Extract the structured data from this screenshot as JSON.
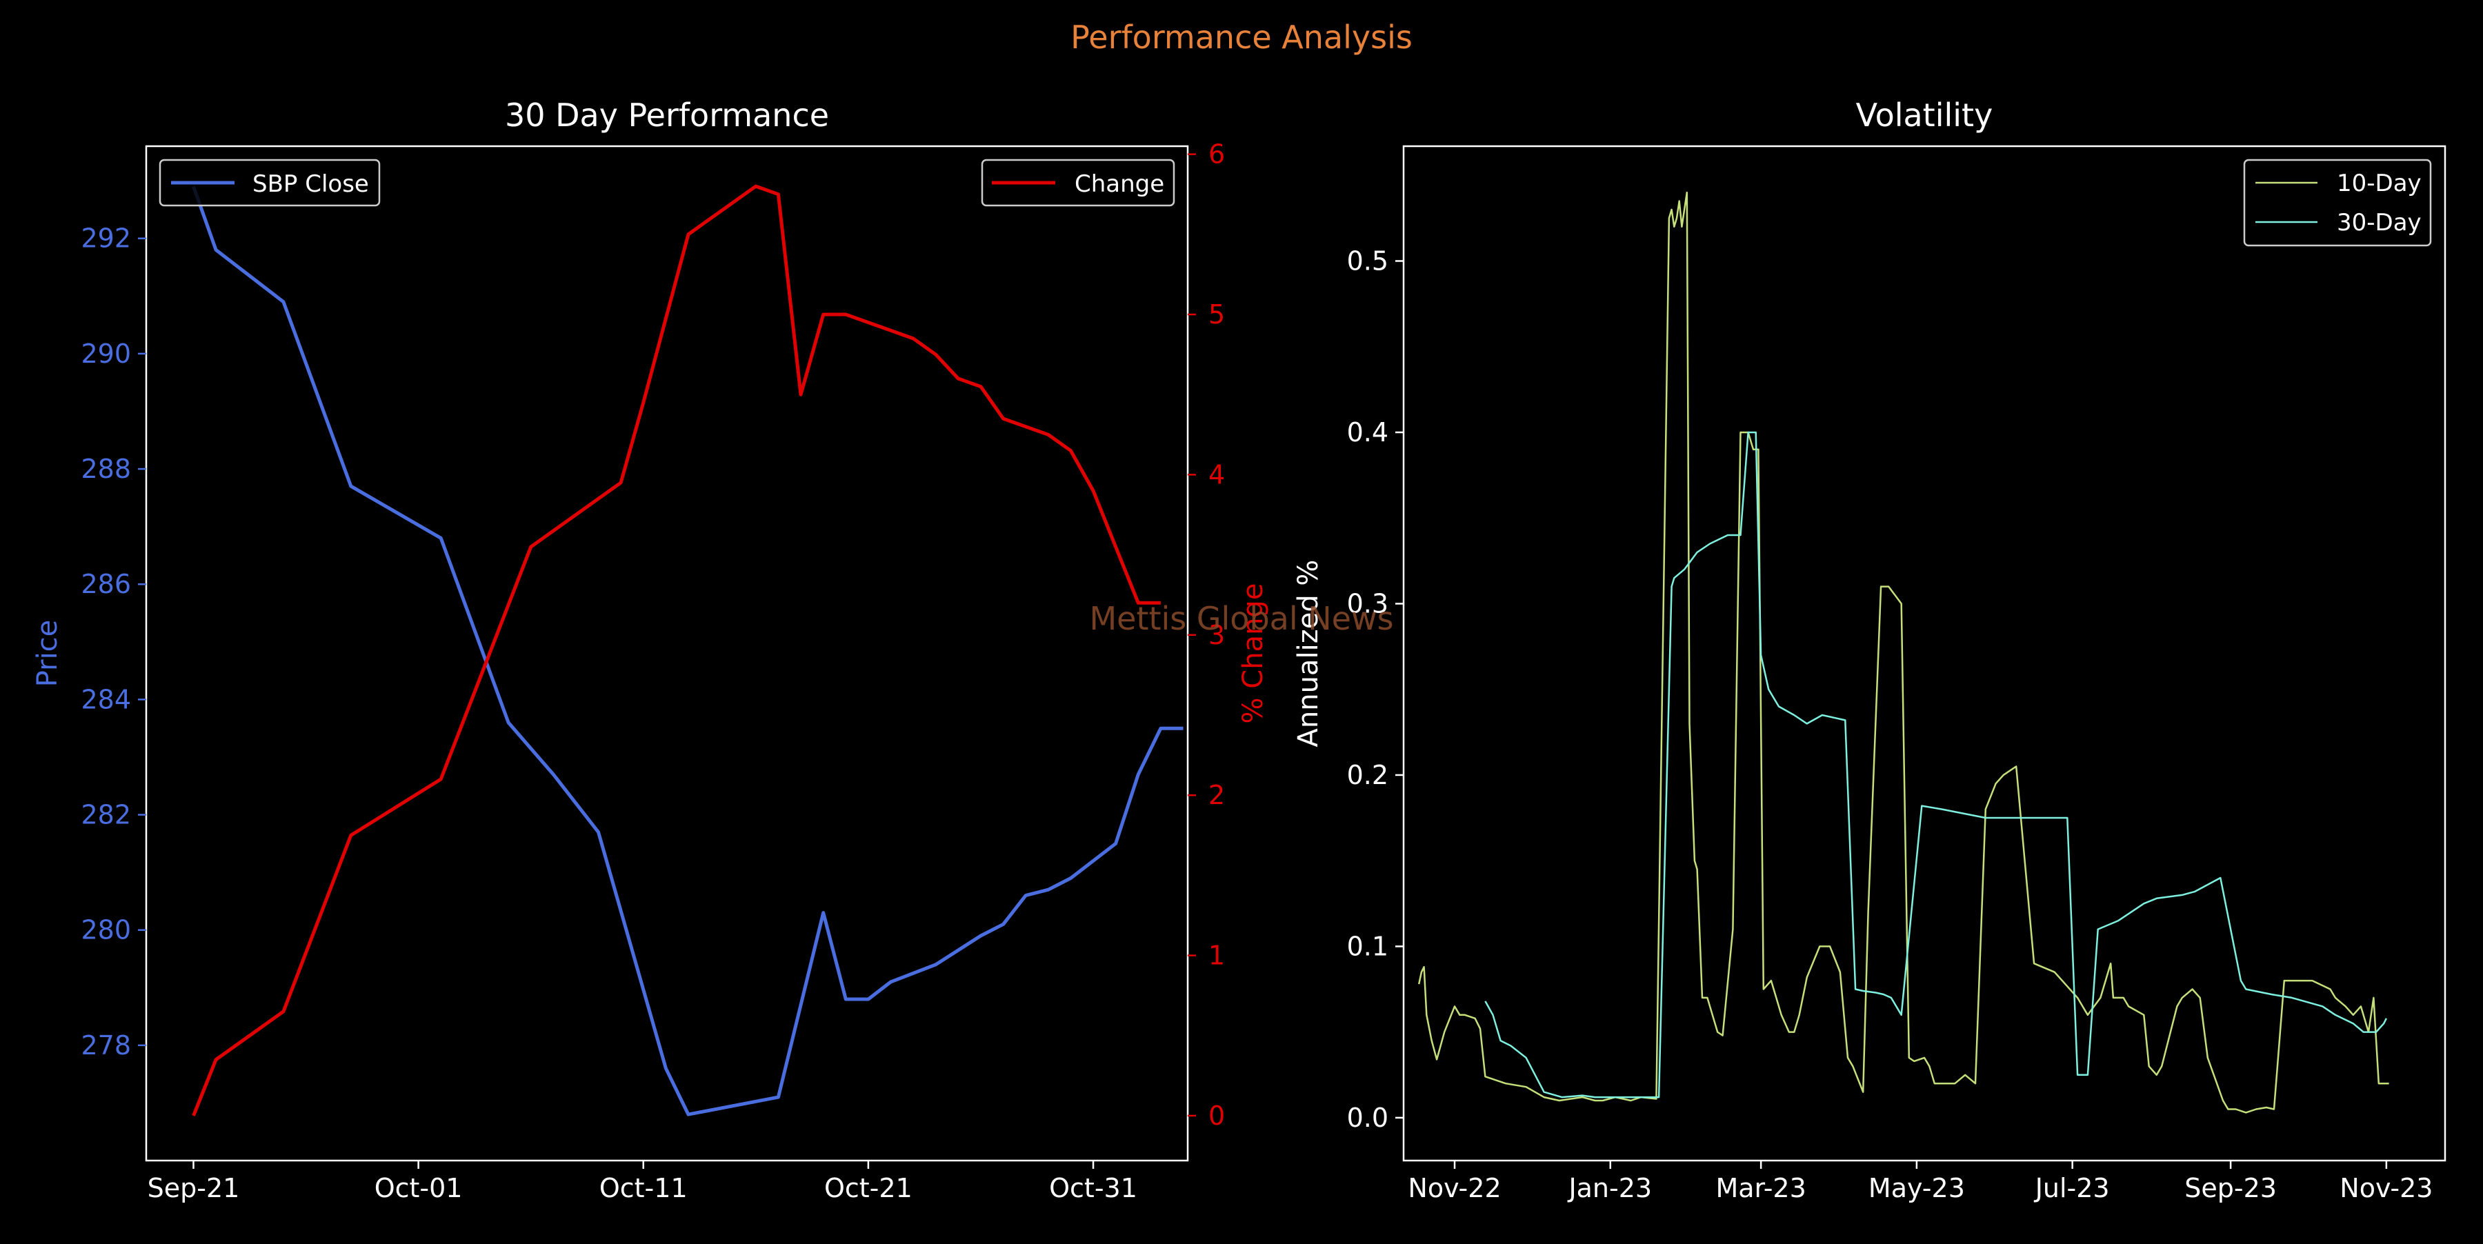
{
  "figure": {
    "suptitle": "Performance Analysis",
    "watermark": "Mettis Global News",
    "colors": {
      "background": "#000000",
      "suptitle": "#e8823a",
      "watermark": "#8a4a2a",
      "axis": "#ffffff"
    }
  },
  "chart_data": [
    {
      "type": "line",
      "title": "30 Day Performance",
      "xlabel": "",
      "x_tick_labels": [
        "Sep-21",
        "Oct-01",
        "Oct-11",
        "Oct-21",
        "Oct-31"
      ],
      "x_tick_days": [
        0,
        10,
        20,
        30,
        40
      ],
      "xlim_days": [
        -2.1,
        44.2
      ],
      "legend_left": "top-left",
      "legend_right": "top-right",
      "y_left": {
        "label": "Price",
        "ylim": [
          276.0,
          293.6
        ],
        "ticks": [
          278,
          280,
          282,
          284,
          286,
          288,
          290,
          292
        ],
        "color": "#4a6ee0"
      },
      "y_right": {
        "label": "% Change",
        "ylim": [
          -0.28,
          6.05
        ],
        "ticks": [
          0,
          1,
          2,
          3,
          4,
          5,
          6
        ],
        "color": "#e00000"
      },
      "series": [
        {
          "name": "SBP Close",
          "axis": "left",
          "color": "#4a6ee0",
          "x_days": [
            0,
            1,
            4,
            7,
            11,
            14,
            16,
            18,
            21,
            22,
            26,
            28,
            29,
            30,
            31,
            33,
            35,
            36,
            37,
            38,
            39,
            41,
            42,
            43,
            44
          ],
          "values": [
            292.9,
            291.8,
            290.9,
            287.7,
            286.8,
            283.6,
            282.7,
            281.7,
            277.6,
            276.8,
            277.1,
            280.3,
            278.8,
            278.8,
            279.1,
            279.4,
            279.9,
            280.1,
            280.6,
            280.7,
            280.9,
            281.5,
            282.7,
            283.5,
            283.5
          ]
        },
        {
          "name": "Change",
          "axis": "right",
          "color": "#e00000",
          "x_days": [
            0,
            1,
            4,
            7,
            11,
            15,
            19,
            20,
            22,
            25,
            26,
            27,
            28,
            29,
            30,
            32,
            33,
            34,
            35,
            36,
            38,
            39,
            40,
            41,
            42,
            43
          ],
          "values": [
            0.0,
            0.35,
            0.65,
            1.75,
            2.1,
            3.55,
            3.95,
            4.45,
            5.5,
            5.8,
            5.75,
            4.5,
            5.0,
            5.0,
            4.95,
            4.85,
            4.75,
            4.6,
            4.55,
            4.35,
            4.25,
            4.15,
            3.9,
            3.55,
            3.2,
            3.2
          ]
        }
      ]
    },
    {
      "type": "line",
      "title": "Volatility",
      "xlabel": "",
      "ylabel": "Annualized %",
      "x_tick_labels": [
        "Nov-22",
        "Jan-23",
        "Mar-23",
        "May-23",
        "Jul-23",
        "Sep-23",
        "Nov-23"
      ],
      "x_tick_days": [
        0,
        61,
        120,
        181,
        242,
        304,
        365
      ],
      "xlim_days": [
        -20,
        388
      ],
      "ylim": [
        -0.025,
        0.567
      ],
      "y_ticks": [
        0.0,
        0.1,
        0.2,
        0.3,
        0.4,
        0.5
      ],
      "legend": "top-right",
      "series": [
        {
          "name": "10-Day",
          "color": "#c5e07a",
          "x_days": [
            -14,
            -13,
            -12,
            -11,
            -9,
            -7,
            -4,
            0,
            2,
            4,
            8,
            10,
            12,
            16,
            20,
            28,
            35,
            41,
            50,
            55,
            58,
            63,
            69,
            73,
            79,
            84,
            85,
            86,
            87,
            88,
            89,
            90,
            91,
            92,
            94,
            95,
            97,
            99,
            101,
            103,
            105,
            109,
            112,
            115,
            117,
            118,
            119,
            121,
            124,
            126,
            128,
            131,
            133,
            135,
            138,
            143,
            147,
            151,
            154,
            156,
            160,
            162,
            167,
            170,
            175,
            178,
            180,
            184,
            186,
            188,
            190,
            196,
            200,
            204,
            208,
            212,
            215,
            220,
            227,
            235,
            238,
            244,
            246,
            248,
            253,
            257,
            258,
            262,
            264,
            270,
            272,
            275,
            277,
            283,
            285,
            289,
            292,
            295,
            301,
            303,
            306,
            310,
            314,
            318,
            321,
            325,
            336,
            343,
            345,
            349,
            352,
            355,
            358,
            360,
            362,
            366
          ],
          "values": [
            0.078,
            0.085,
            0.088,
            0.06,
            0.045,
            0.034,
            0.05,
            0.065,
            0.06,
            0.06,
            0.058,
            0.052,
            0.024,
            0.022,
            0.02,
            0.018,
            0.012,
            0.01,
            0.012,
            0.01,
            0.01,
            0.012,
            0.01,
            0.012,
            0.011,
            0.525,
            0.53,
            0.52,
            0.525,
            0.535,
            0.52,
            0.53,
            0.54,
            0.23,
            0.15,
            0.145,
            0.07,
            0.07,
            0.06,
            0.05,
            0.048,
            0.11,
            0.4,
            0.4,
            0.39,
            0.39,
            0.39,
            0.075,
            0.08,
            0.07,
            0.06,
            0.05,
            0.05,
            0.06,
            0.082,
            0.1,
            0.1,
            0.085,
            0.035,
            0.03,
            0.015,
            0.12,
            0.31,
            0.31,
            0.3,
            0.035,
            0.033,
            0.035,
            0.03,
            0.02,
            0.02,
            0.02,
            0.025,
            0.02,
            0.18,
            0.195,
            0.2,
            0.205,
            0.09,
            0.085,
            0.08,
            0.07,
            0.065,
            0.06,
            0.07,
            0.09,
            0.07,
            0.07,
            0.065,
            0.06,
            0.03,
            0.025,
            0.03,
            0.065,
            0.07,
            0.075,
            0.07,
            0.035,
            0.01,
            0.005,
            0.005,
            0.003,
            0.005,
            0.006,
            0.005,
            0.08,
            0.08,
            0.075,
            0.07,
            0.065,
            0.06,
            0.065,
            0.05,
            0.07,
            0.02,
            0.02
          ]
        },
        {
          "name": "30-Day",
          "color": "#7ef0e0",
          "x_days": [
            12,
            15,
            18,
            22,
            28,
            35,
            42,
            50,
            55,
            60,
            66,
            71,
            80,
            85,
            86,
            90,
            95,
            100,
            107,
            112,
            115,
            118,
            120,
            123,
            127,
            133,
            138,
            144,
            153,
            157,
            160,
            165,
            168,
            171,
            175,
            183,
            191,
            208,
            230,
            240,
            244,
            248,
            252,
            260,
            265,
            270,
            275,
            285,
            290,
            300,
            308,
            310,
            320,
            328,
            340,
            345,
            352,
            356,
            361,
            364,
            365
          ],
          "values": [
            0.068,
            0.06,
            0.045,
            0.042,
            0.035,
            0.015,
            0.012,
            0.013,
            0.012,
            0.012,
            0.012,
            0.012,
            0.012,
            0.31,
            0.315,
            0.32,
            0.33,
            0.335,
            0.34,
            0.34,
            0.4,
            0.4,
            0.27,
            0.25,
            0.24,
            0.235,
            0.23,
            0.235,
            0.232,
            0.075,
            0.074,
            0.073,
            0.072,
            0.07,
            0.06,
            0.182,
            0.18,
            0.175,
            0.175,
            0.175,
            0.025,
            0.025,
            0.11,
            0.115,
            0.12,
            0.125,
            0.128,
            0.13,
            0.132,
            0.14,
            0.08,
            0.075,
            0.072,
            0.07,
            0.065,
            0.06,
            0.055,
            0.05,
            0.05,
            0.055,
            0.058
          ]
        }
      ]
    }
  ]
}
